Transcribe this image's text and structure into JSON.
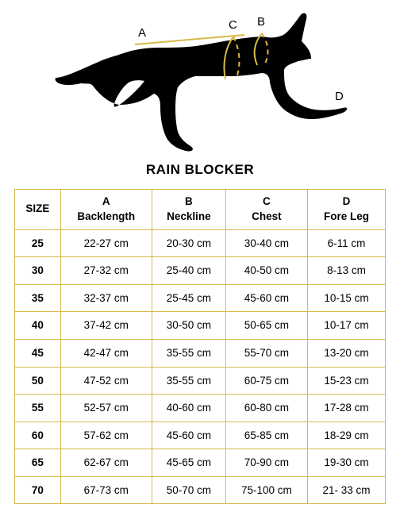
{
  "title": "RAIN BLOCKER",
  "diagram": {
    "labels": {
      "A": "A",
      "B": "B",
      "C": "C",
      "D": "D"
    },
    "label_color": "#000000",
    "label_fontsize": 15,
    "silhouette_color": "#000000",
    "measure_line_color": "#d8b94a",
    "measure_line_width": 2
  },
  "table": {
    "border_color": "#d8b94a",
    "header_fontweight": 700,
    "cell_fontsize": 13.5,
    "columns": [
      {
        "key": "size",
        "label_top": "",
        "label_bottom": "SIZE"
      },
      {
        "key": "a",
        "label_top": "A",
        "label_bottom": "Backlength"
      },
      {
        "key": "b",
        "label_top": "B",
        "label_bottom": "Neckline"
      },
      {
        "key": "c",
        "label_top": "C",
        "label_bottom": "Chest"
      },
      {
        "key": "d",
        "label_top": "D",
        "label_bottom": "Fore Leg"
      }
    ],
    "rows": [
      {
        "size": "25",
        "a": "22-27 cm",
        "b": "20-30 cm",
        "c": "30-40 cm",
        "d": "6-11 cm"
      },
      {
        "size": "30",
        "a": "27-32 cm",
        "b": "25-40 cm",
        "c": "40-50 cm",
        "d": "8-13 cm"
      },
      {
        "size": "35",
        "a": "32-37 cm",
        "b": "25-45 cm",
        "c": "45-60 cm",
        "d": "10-15 cm"
      },
      {
        "size": "40",
        "a": "37-42 cm",
        "b": "30-50 cm",
        "c": "50-65 cm",
        "d": "10-17 cm"
      },
      {
        "size": "45",
        "a": "42-47 cm",
        "b": "35-55 cm",
        "c": "55-70 cm",
        "d": "13-20 cm"
      },
      {
        "size": "50",
        "a": "47-52 cm",
        "b": "35-55 cm",
        "c": "60-75 cm",
        "d": "15-23 cm"
      },
      {
        "size": "55",
        "a": "52-57 cm",
        "b": "40-60 cm",
        "c": "60-80 cm",
        "d": "17-28 cm"
      },
      {
        "size": "60",
        "a": "57-62 cm",
        "b": "45-60 cm",
        "c": "65-85 cm",
        "d": "18-29 cm"
      },
      {
        "size": "65",
        "a": "62-67 cm",
        "b": "45-65 cm",
        "c": "70-90 cm",
        "d": "19-30 cm"
      },
      {
        "size": "70",
        "a": "67-73 cm",
        "b": "50-70 cm",
        "c": "75-100 cm",
        "d": "21- 33 cm"
      }
    ]
  }
}
